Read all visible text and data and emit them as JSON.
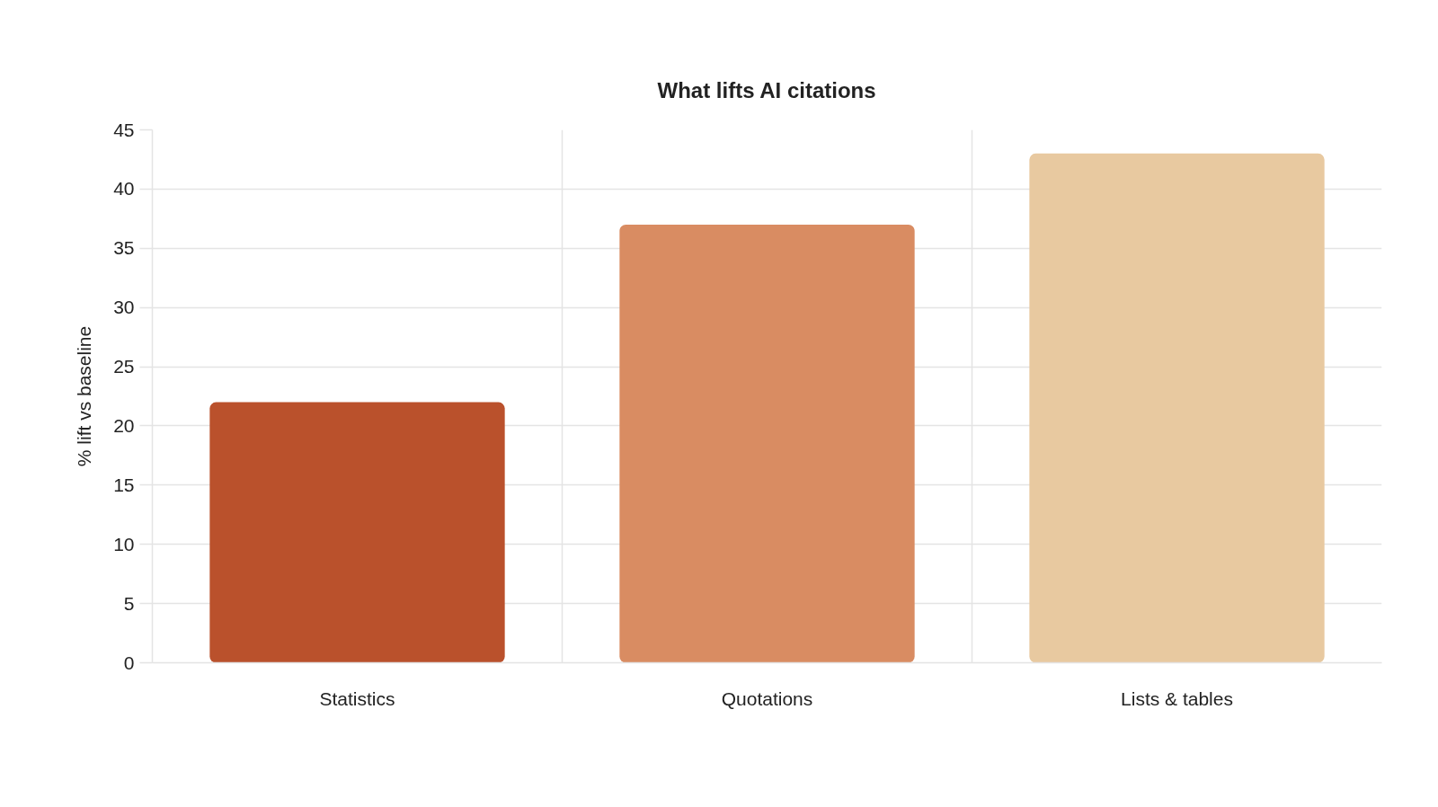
{
  "chart_data": {
    "type": "bar",
    "title": "What lifts AI citations",
    "ylabel": "% lift vs baseline",
    "categories": [
      "Statistics",
      "Quotations",
      "Lists & tables"
    ],
    "values": [
      22,
      37,
      43
    ],
    "colors": [
      "#ba512c",
      "#d98c62",
      "#e8c9a0"
    ],
    "ylim": [
      0,
      45
    ],
    "yticks": [
      0,
      5,
      10,
      15,
      20,
      25,
      30,
      35,
      40,
      45
    ],
    "grid": true
  }
}
